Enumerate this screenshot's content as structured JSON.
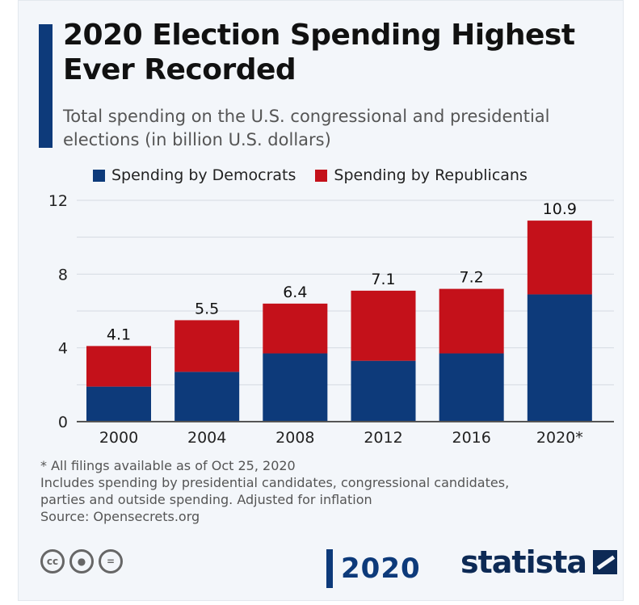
{
  "header": {
    "title": "2020 Election Spending Highest Ever Recorded",
    "subtitle": "Total spending on the U.S. congressional and presidential elections (in billion U.S. dollars)"
  },
  "colors": {
    "democrats": "#0d3a7a",
    "republicans": "#c4111a",
    "accent": "#0d3a7a"
  },
  "chart_data": {
    "type": "bar",
    "stacked": true,
    "categories": [
      "2000",
      "2004",
      "2008",
      "2012",
      "2016",
      "2020*"
    ],
    "series": [
      {
        "name": "Spending by Democrats",
        "values": [
          1.9,
          2.7,
          3.7,
          3.3,
          3.7,
          6.9
        ]
      },
      {
        "name": "Spending by Republicans",
        "values": [
          2.2,
          2.8,
          2.7,
          3.8,
          3.5,
          4.0
        ]
      }
    ],
    "totals": [
      4.1,
      5.5,
      6.4,
      7.1,
      7.2,
      10.9
    ],
    "total_labels": [
      "4.1",
      "5.5",
      "6.4",
      "7.1",
      "7.2",
      "10.9"
    ],
    "yticks": [
      "0",
      "4",
      "8",
      "12"
    ],
    "ylim": [
      0,
      12
    ],
    "grid": true,
    "legend_position": "top"
  },
  "notes": {
    "footnote": "* All filings available as of Oct 25, 2020",
    "line1": "Includes spending by presidential candidates, congressional candidates,",
    "line2": "parties and outside spending. Adjusted for inflation",
    "source": "Source: Opensecrets.org"
  },
  "footer": {
    "license_icons": [
      "cc-icon",
      "attribution-icon",
      "no-derivatives-icon"
    ],
    "cc_text": "cc",
    "logo_2020": "2020",
    "brand": "statista"
  }
}
